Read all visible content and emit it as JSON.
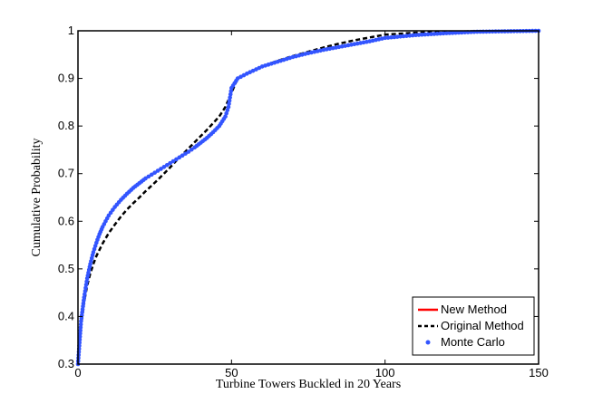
{
  "chart_data": {
    "type": "line",
    "title": "",
    "xlabel": "Turbine Towers Buckled in 20 Years",
    "ylabel": "Cumulative Probability",
    "xlim": [
      0,
      150
    ],
    "ylim": [
      0.3,
      1
    ],
    "xticks": [
      0,
      50,
      100,
      150
    ],
    "yticks": [
      0.3,
      0.4,
      0.5,
      0.6,
      0.7,
      0.8,
      0.9,
      1
    ],
    "xtick_labels": [
      "0",
      "50",
      "100",
      "150"
    ],
    "ytick_labels": [
      "0.3",
      "0.4",
      "0.5",
      "0.6",
      "0.7",
      "0.8",
      "0.9",
      "1"
    ],
    "grid": false,
    "legend_position": "bottom-right",
    "series": [
      {
        "name": "New Method",
        "color": "#ff0000",
        "style": "solid",
        "x": [
          0,
          1,
          2,
          3,
          4,
          5,
          6,
          7,
          8,
          10,
          12,
          14,
          16,
          18,
          20,
          22,
          24,
          26,
          28,
          30,
          32,
          34,
          36,
          38,
          40,
          42,
          44,
          46,
          48,
          49,
          50,
          52,
          55,
          60,
          65,
          70,
          75,
          80,
          85,
          90,
          95,
          100,
          110,
          120,
          130,
          140,
          150
        ],
        "y": [
          0.3,
          0.39,
          0.44,
          0.48,
          0.51,
          0.535,
          0.555,
          0.573,
          0.588,
          0.612,
          0.63,
          0.645,
          0.658,
          0.67,
          0.68,
          0.69,
          0.698,
          0.706,
          0.714,
          0.722,
          0.73,
          0.738,
          0.746,
          0.755,
          0.765,
          0.775,
          0.787,
          0.8,
          0.82,
          0.84,
          0.88,
          0.9,
          0.91,
          0.925,
          0.935,
          0.945,
          0.953,
          0.96,
          0.966,
          0.972,
          0.978,
          0.985,
          0.991,
          0.995,
          0.998,
          0.999,
          1.0
        ]
      },
      {
        "name": "Original Method",
        "color": "#000000",
        "style": "dashed",
        "x": [
          0,
          1,
          2,
          3,
          4,
          5,
          6,
          8,
          10,
          12,
          14,
          16,
          18,
          20,
          22,
          24,
          26,
          28,
          30,
          32,
          34,
          36,
          38,
          40,
          42,
          44,
          46,
          48,
          50,
          52,
          55,
          60,
          65,
          70,
          75,
          80,
          85,
          90,
          95,
          100,
          110,
          120,
          130,
          140,
          150
        ],
        "y": [
          0.3,
          0.38,
          0.43,
          0.465,
          0.49,
          0.51,
          0.527,
          0.553,
          0.575,
          0.593,
          0.61,
          0.625,
          0.638,
          0.65,
          0.663,
          0.675,
          0.687,
          0.7,
          0.713,
          0.727,
          0.74,
          0.753,
          0.766,
          0.779,
          0.792,
          0.806,
          0.82,
          0.84,
          0.87,
          0.9,
          0.91,
          0.925,
          0.937,
          0.947,
          0.956,
          0.965,
          0.973,
          0.98,
          0.986,
          0.992,
          0.996,
          0.998,
          0.999,
          1.0,
          1.0
        ]
      },
      {
        "name": "Monte Carlo",
        "color": "#3355ff",
        "style": "dots",
        "x": [
          0,
          1,
          2,
          3,
          4,
          5,
          6,
          7,
          8,
          10,
          12,
          14,
          16,
          18,
          20,
          22,
          24,
          26,
          28,
          30,
          32,
          34,
          36,
          38,
          40,
          42,
          44,
          46,
          48,
          49,
          50,
          52,
          55,
          60,
          65,
          70,
          75,
          80,
          85,
          90,
          95,
          100,
          110,
          120,
          130,
          140,
          150
        ],
        "y": [
          0.3,
          0.39,
          0.44,
          0.48,
          0.51,
          0.535,
          0.555,
          0.573,
          0.588,
          0.612,
          0.63,
          0.645,
          0.658,
          0.67,
          0.68,
          0.69,
          0.698,
          0.706,
          0.714,
          0.722,
          0.73,
          0.738,
          0.746,
          0.755,
          0.765,
          0.775,
          0.787,
          0.8,
          0.82,
          0.84,
          0.88,
          0.9,
          0.91,
          0.925,
          0.935,
          0.945,
          0.953,
          0.96,
          0.966,
          0.972,
          0.978,
          0.985,
          0.991,
          0.995,
          0.998,
          0.999,
          1.0
        ]
      }
    ]
  }
}
